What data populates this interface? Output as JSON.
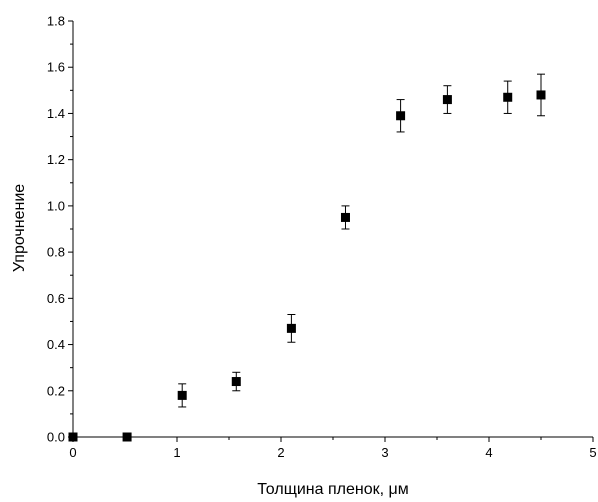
{
  "chart_data": {
    "type": "scatter",
    "title": "",
    "xlabel": "Толщина пленок, μм",
    "ylabel": "Упрочнение",
    "xlim": [
      0,
      5
    ],
    "ylim": [
      0,
      1.8
    ],
    "x_ticks": [
      "0",
      "1",
      "2",
      "3",
      "4",
      "5"
    ],
    "y_ticks": [
      "0.0",
      "0.2",
      "0.4",
      "0.6",
      "0.8",
      "1.0",
      "1.2",
      "1.4",
      "1.6",
      "1.8"
    ],
    "grid": false,
    "legend": "none",
    "marker": "filled-square",
    "marker_color": "#000000",
    "series": [
      {
        "points": [
          {
            "x": 0.0,
            "y": 0.0,
            "err": 0.0
          },
          {
            "x": 0.52,
            "y": 0.0,
            "err": 0.0
          },
          {
            "x": 1.05,
            "y": 0.18,
            "err": 0.05
          },
          {
            "x": 1.57,
            "y": 0.24,
            "err": 0.04
          },
          {
            "x": 2.1,
            "y": 0.47,
            "err": 0.06
          },
          {
            "x": 2.62,
            "y": 0.95,
            "err": 0.05
          },
          {
            "x": 3.15,
            "y": 1.39,
            "err": 0.07
          },
          {
            "x": 3.6,
            "y": 1.46,
            "err": 0.06
          },
          {
            "x": 4.18,
            "y": 1.47,
            "err": 0.07
          },
          {
            "x": 4.5,
            "y": 1.48,
            "err": 0.09
          }
        ]
      }
    ]
  }
}
